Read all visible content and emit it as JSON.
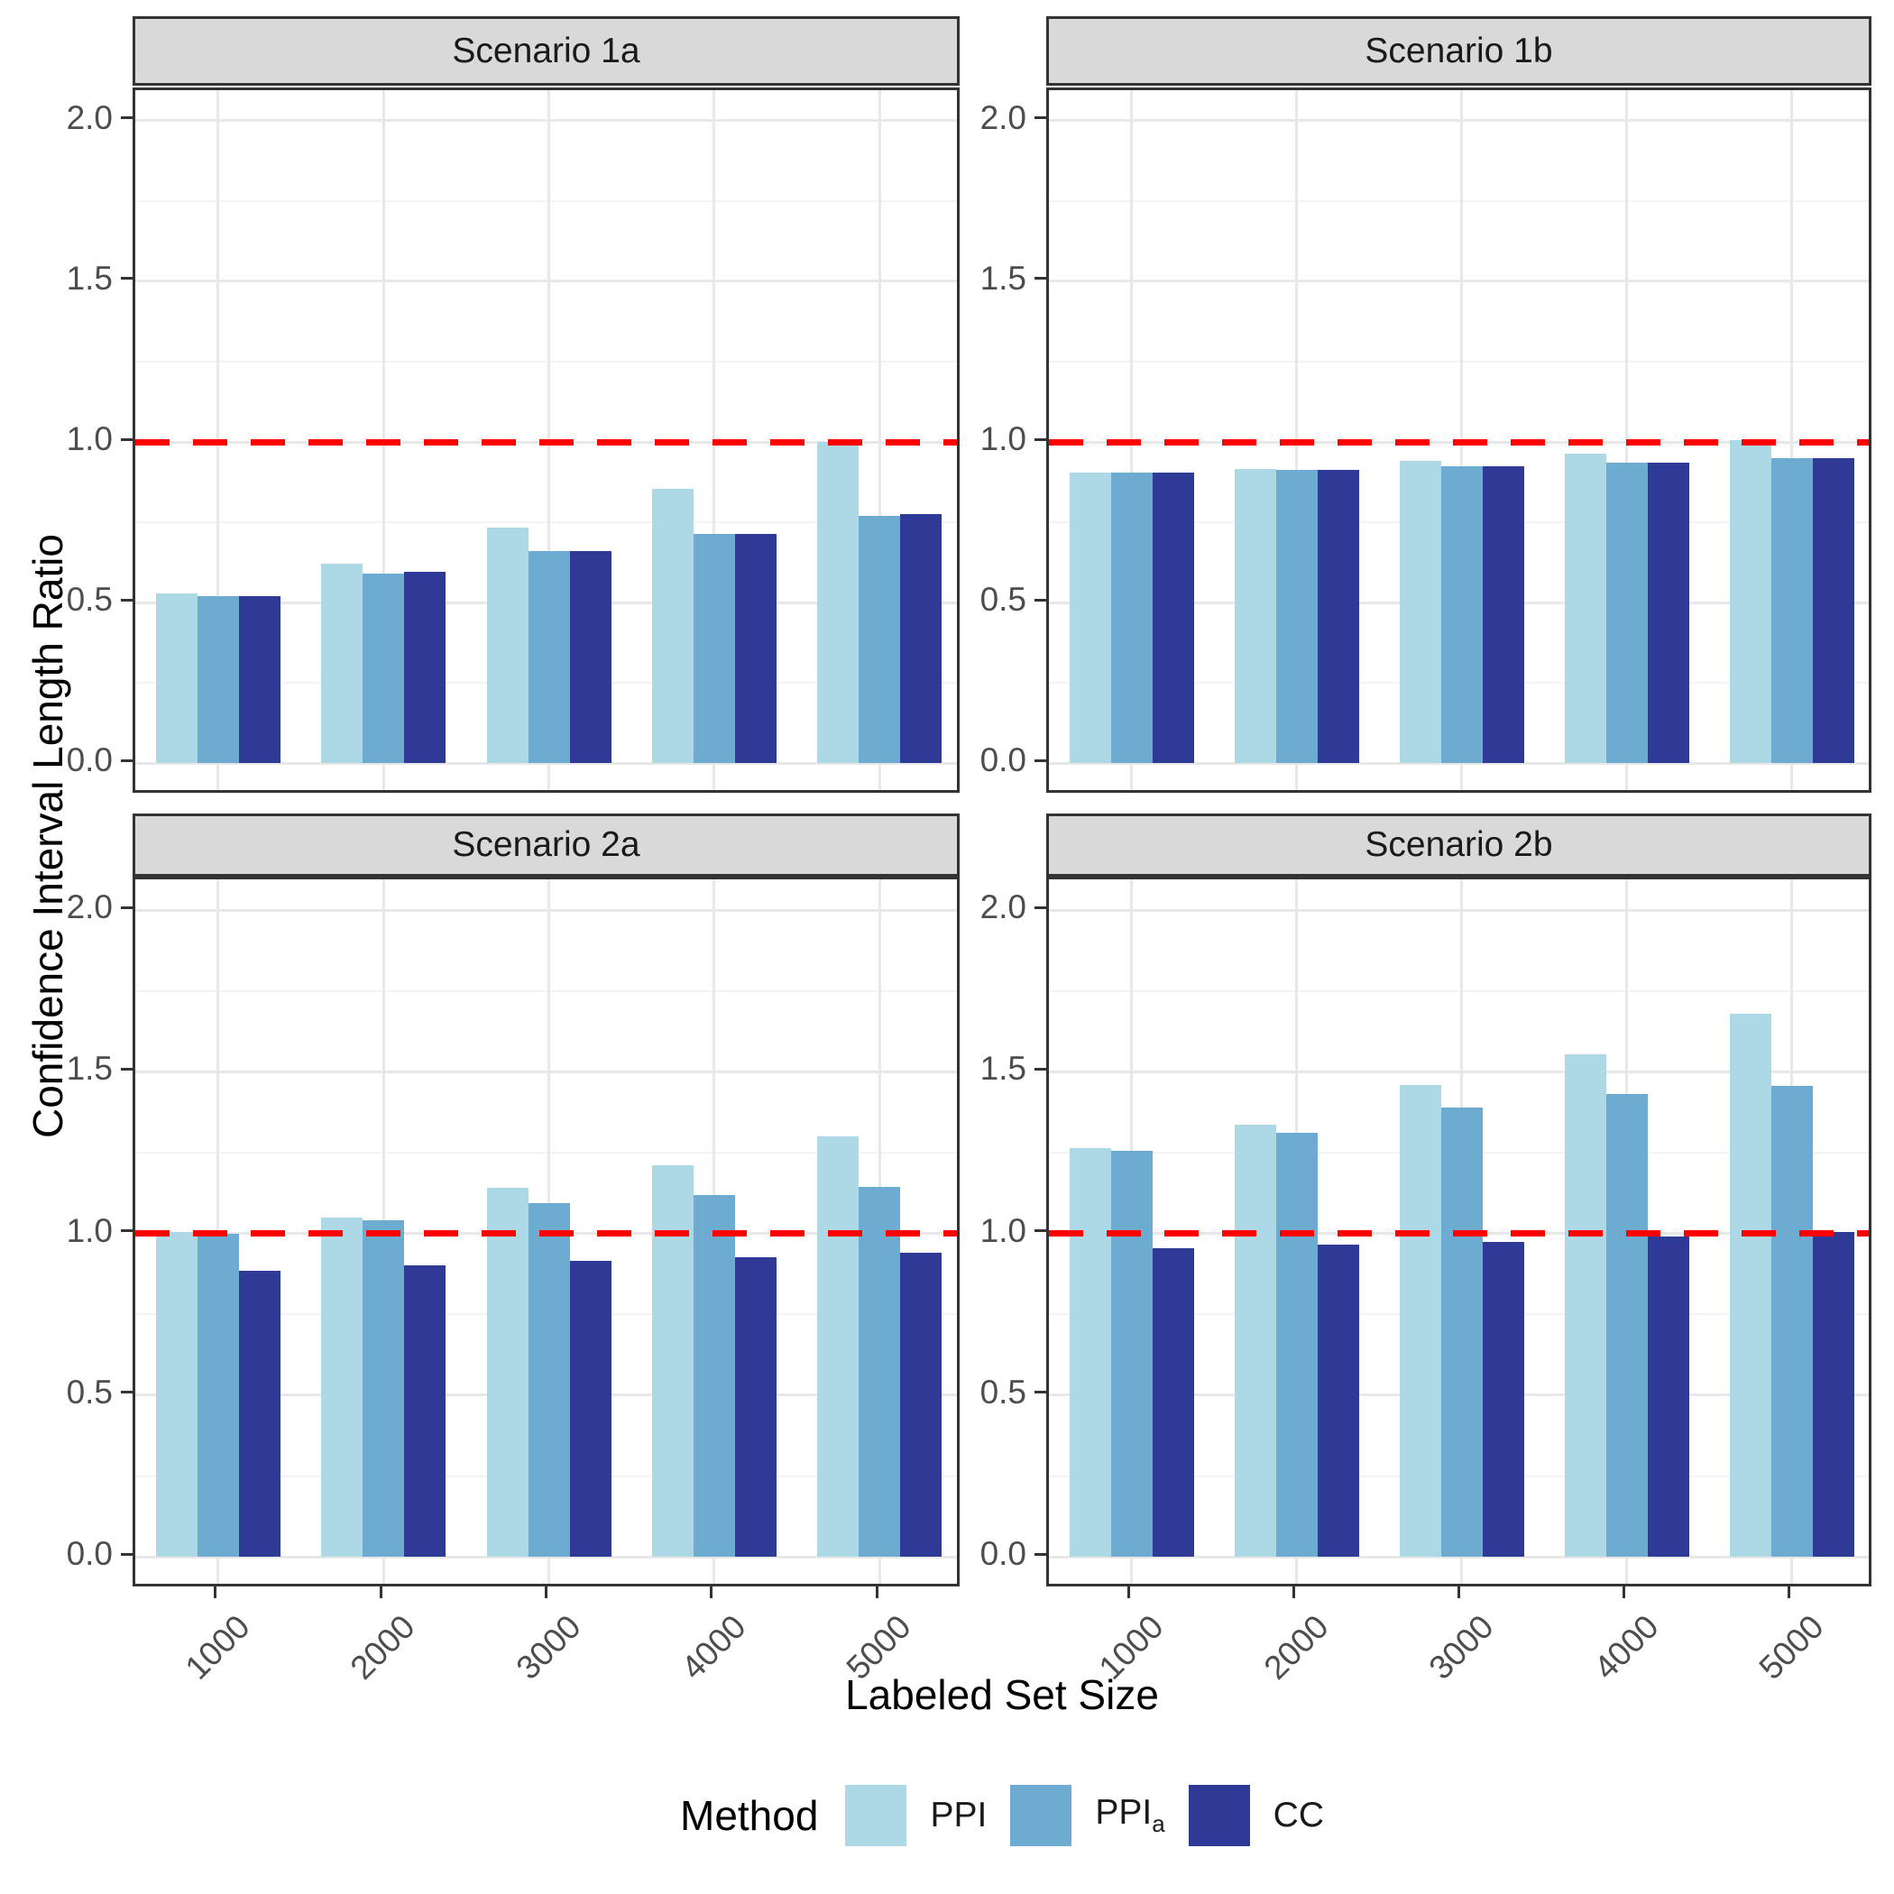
{
  "figure": {
    "y_axis_title": "Confidence Interval Length Ratio",
    "x_axis_title": "Labeled Set Size",
    "legend": {
      "title": "Method",
      "entries": [
        {
          "name": "PPI",
          "label": "PPI",
          "subscript": ""
        },
        {
          "name": "PPI_a",
          "label": "PPI",
          "subscript": "a"
        },
        {
          "name": "CC",
          "label": "CC",
          "subscript": ""
        }
      ]
    }
  },
  "chart_data": {
    "type": "bar",
    "title": "",
    "xlabel": "Labeled Set Size",
    "ylabel": "Confidence Interval Length Ratio",
    "categories": [
      "1000",
      "2000",
      "3000",
      "4000",
      "5000"
    ],
    "series_names": [
      "PPI",
      "PPI_a",
      "CC"
    ],
    "y_ticks": [
      0.0,
      0.5,
      1.0,
      1.5,
      2.0
    ],
    "y_minor_ticks": [
      0.25,
      0.75,
      1.25,
      1.75
    ],
    "ylim": [
      0,
      2.1
    ],
    "reference_line_y": 1.0,
    "legend_position": "bottom",
    "grid": true,
    "colors": {
      "PPI": "#ADD8E6",
      "PPI_a": "#6EABD0",
      "CC": "#2F3A96",
      "reference": "#FF0000",
      "strip_background": "#D9D9D9",
      "panel_border": "#333333",
      "grid_major": "#E8E8E8"
    },
    "facets": [
      {
        "label": "Scenario 1a",
        "row": 0,
        "col": 0,
        "series": [
          {
            "name": "PPI",
            "values": [
              0.53,
              0.62,
              0.735,
              0.855,
              1.0
            ]
          },
          {
            "name": "PPI_a",
            "values": [
              0.52,
              0.59,
              0.66,
              0.715,
              0.77
            ]
          },
          {
            "name": "CC",
            "values": [
              0.52,
              0.595,
              0.66,
              0.715,
              0.775
            ]
          }
        ]
      },
      {
        "label": "Scenario 1b",
        "row": 0,
        "col": 1,
        "series": [
          {
            "name": "PPI",
            "values": [
              0.905,
              0.917,
              0.94,
              0.965,
              1.005
            ]
          },
          {
            "name": "PPI_a",
            "values": [
              0.905,
              0.912,
              0.924,
              0.935,
              0.95
            ]
          },
          {
            "name": "CC",
            "values": [
              0.905,
              0.913,
              0.924,
              0.935,
              0.949
            ]
          }
        ]
      },
      {
        "label": "Scenario 2a",
        "row": 1,
        "col": 0,
        "series": [
          {
            "name": "PPI",
            "values": [
              1.005,
              1.05,
              1.14,
              1.21,
              1.3
            ]
          },
          {
            "name": "PPI_a",
            "values": [
              1.0,
              1.04,
              1.095,
              1.12,
              1.145
            ]
          },
          {
            "name": "CC",
            "values": [
              0.885,
              0.9,
              0.915,
              0.925,
              0.94
            ]
          }
        ]
      },
      {
        "label": "Scenario 2b",
        "row": 1,
        "col": 1,
        "series": [
          {
            "name": "PPI",
            "values": [
              1.265,
              1.335,
              1.46,
              1.555,
              1.68
            ]
          },
          {
            "name": "PPI_a",
            "values": [
              1.255,
              1.31,
              1.39,
              1.43,
              1.455
            ]
          },
          {
            "name": "CC",
            "values": [
              0.955,
              0.965,
              0.975,
              0.99,
              1.005
            ]
          }
        ]
      }
    ]
  }
}
